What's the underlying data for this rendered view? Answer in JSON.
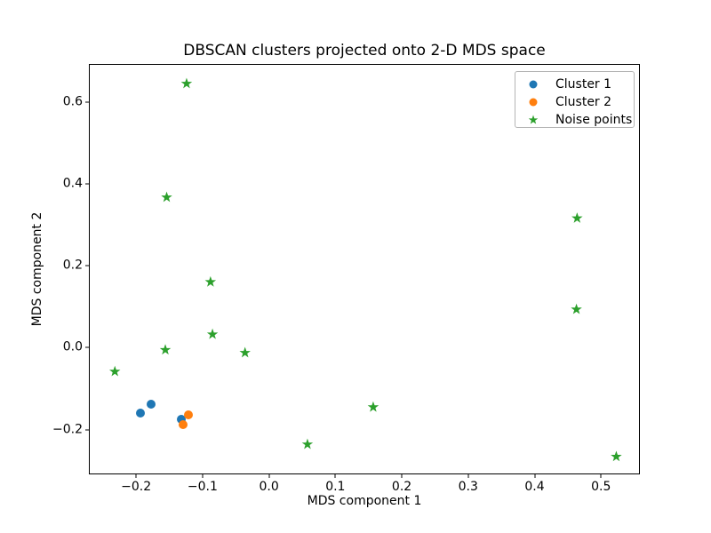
{
  "figure": {
    "background": "#ffffff",
    "spine_color": "#000000",
    "text_color": "#000000"
  },
  "chart_data": {
    "type": "scatter",
    "title": "DBSCAN clusters projected onto 2-D MDS space",
    "xlabel": "MDS component 1",
    "ylabel": "MDS component 2",
    "xlim": [
      -0.2698,
      0.5599
    ],
    "ylim": [
      -0.3117,
      0.6918
    ],
    "grid": false,
    "xticks": {
      "values": [
        -0.2,
        -0.1,
        0.0,
        0.1,
        0.2,
        0.3,
        0.4,
        0.5
      ],
      "labels": [
        "−0.2",
        "−0.1",
        "0.0",
        "0.1",
        "0.2",
        "0.3",
        "0.4",
        "0.5"
      ]
    },
    "yticks": {
      "values": [
        -0.2,
        0.0,
        0.2,
        0.4,
        0.6
      ],
      "labels": [
        "−0.2",
        "0.0",
        "0.2",
        "0.4",
        "0.6"
      ]
    },
    "legend": {
      "position": "upper right",
      "entries": [
        "Cluster 1",
        "Cluster 2",
        "Noise points"
      ]
    },
    "series": [
      {
        "name": "Cluster 1",
        "marker": "circle",
        "color": "#1f77b4",
        "points": [
          [
            -0.194,
            -0.159
          ],
          [
            -0.177,
            -0.138
          ],
          [
            -0.132,
            -0.175
          ]
        ]
      },
      {
        "name": "Cluster 2",
        "marker": "circle",
        "color": "#ff7f0e",
        "points": [
          [
            -0.121,
            -0.165
          ],
          [
            -0.129,
            -0.188
          ]
        ]
      },
      {
        "name": "Noise points",
        "marker": "star",
        "color": "#2ca02c",
        "points": [
          [
            -0.124,
            0.646
          ],
          [
            -0.154,
            0.368
          ],
          [
            0.464,
            0.317
          ],
          [
            -0.088,
            0.161
          ],
          [
            0.463,
            0.094
          ],
          [
            -0.085,
            0.033
          ],
          [
            -0.156,
            -0.005
          ],
          [
            -0.036,
            -0.012
          ],
          [
            -0.232,
            -0.058
          ],
          [
            0.157,
            -0.145
          ],
          [
            0.058,
            -0.236
          ],
          [
            0.523,
            -0.266
          ]
        ]
      }
    ]
  }
}
